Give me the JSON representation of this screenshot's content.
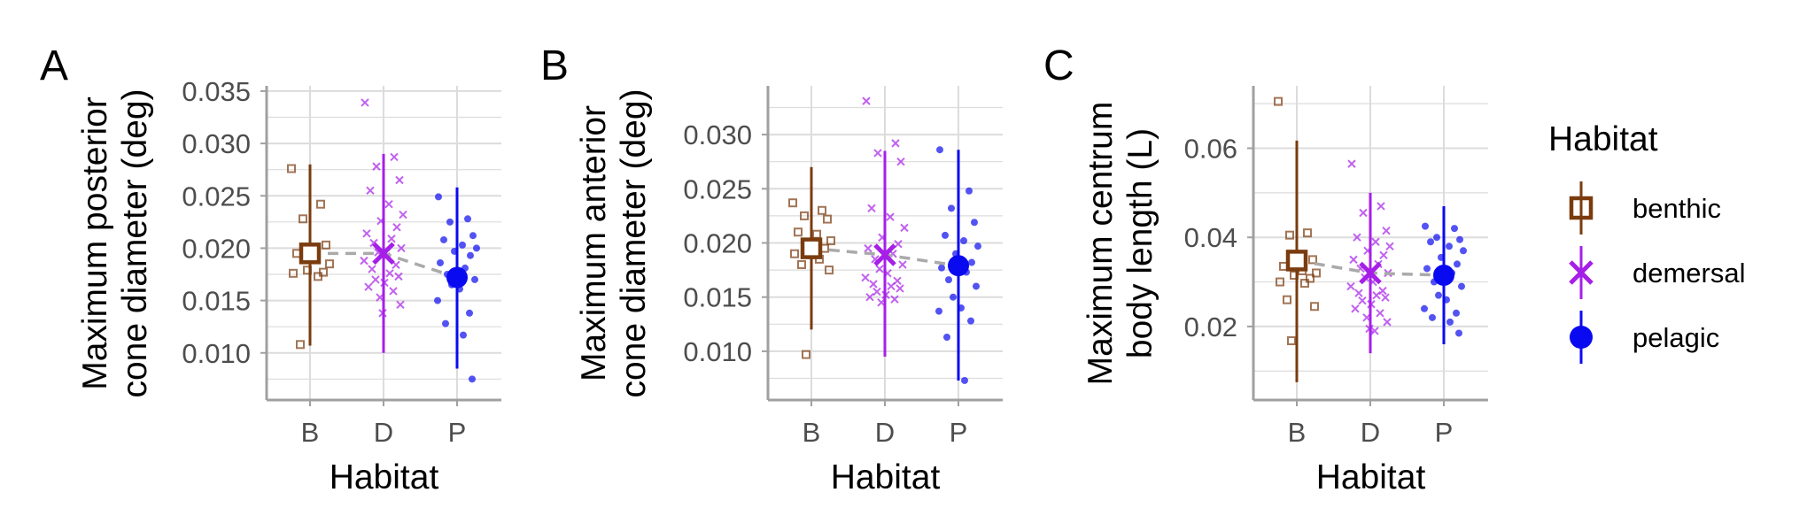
{
  "chart_data": [
    {
      "type": "scatter",
      "panel_label": "A",
      "xlabel": "Habitat",
      "ylabel_lines": [
        "Maximum posterior",
        "cone diameter (deg)"
      ],
      "categories": [
        "B",
        "D",
        "P"
      ],
      "ylim": [
        0.0055,
        0.0355
      ],
      "yticks": [
        0.01,
        0.015,
        0.02,
        0.025,
        0.03,
        0.035
      ],
      "ytick_labels": [
        "0.010",
        "0.015",
        "0.020",
        "0.025",
        "0.030",
        "0.035"
      ],
      "grid": true,
      "trend_line": "dashed gray connecting group means",
      "groups": [
        {
          "habitat": "benthic",
          "mean": 0.0195,
          "lower": 0.0107,
          "upper": 0.028,
          "points": [
            0.0276,
            0.0242,
            0.0228,
            0.0203,
            0.0195,
            0.019,
            0.0185,
            0.0179,
            0.0177,
            0.0176,
            0.0173,
            0.0108
          ]
        },
        {
          "habitat": "demersal",
          "mean": 0.0195,
          "lower": 0.01,
          "upper": 0.029,
          "points": [
            0.0339,
            0.0287,
            0.0278,
            0.0265,
            0.0255,
            0.0242,
            0.0232,
            0.0226,
            0.022,
            0.0214,
            0.0209,
            0.0205,
            0.02,
            0.0196,
            0.0192,
            0.0188,
            0.0184,
            0.018,
            0.0176,
            0.0173,
            0.017,
            0.0167,
            0.0163,
            0.0159,
            0.0153,
            0.0146,
            0.0138
          ]
        },
        {
          "habitat": "pelagic",
          "mean": 0.0172,
          "lower": 0.0085,
          "upper": 0.0258,
          "points": [
            0.0249,
            0.0228,
            0.0225,
            0.0212,
            0.0208,
            0.0203,
            0.02,
            0.0197,
            0.0193,
            0.0186,
            0.0181,
            0.0175,
            0.017,
            0.0165,
            0.0161,
            0.015,
            0.0138,
            0.0128,
            0.0117,
            0.0075
          ]
        }
      ]
    },
    {
      "type": "scatter",
      "panel_label": "B",
      "xlabel": "Habitat",
      "ylabel_lines": [
        "Maximum anterior",
        "cone diameter (deg)"
      ],
      "categories": [
        "B",
        "D",
        "P"
      ],
      "ylim": [
        0.0055,
        0.0345
      ],
      "yticks": [
        0.01,
        0.015,
        0.02,
        0.025,
        0.03
      ],
      "ytick_labels": [
        "0.010",
        "0.015",
        "0.020",
        "0.025",
        "0.030"
      ],
      "grid": true,
      "trend_line": "dashed gray connecting group means",
      "groups": [
        {
          "habitat": "benthic",
          "mean": 0.0195,
          "lower": 0.012,
          "upper": 0.027,
          "points": [
            0.0237,
            0.023,
            0.0225,
            0.0222,
            0.021,
            0.0208,
            0.0202,
            0.02,
            0.0195,
            0.019,
            0.0185,
            0.018,
            0.0175,
            0.0097
          ]
        },
        {
          "habitat": "demersal",
          "mean": 0.0189,
          "lower": 0.0095,
          "upper": 0.0285,
          "points": [
            0.0331,
            0.0292,
            0.0283,
            0.0275,
            0.0232,
            0.0224,
            0.0214,
            0.0205,
            0.0199,
            0.0195,
            0.019,
            0.0185,
            0.018,
            0.0176,
            0.0172,
            0.0168,
            0.0165,
            0.0162,
            0.016,
            0.0158,
            0.0155,
            0.0152,
            0.015,
            0.0148,
            0.0145
          ]
        },
        {
          "habitat": "pelagic",
          "mean": 0.0179,
          "lower": 0.0073,
          "upper": 0.0286,
          "points": [
            0.0286,
            0.0248,
            0.0232,
            0.0219,
            0.0207,
            0.0202,
            0.0197,
            0.019,
            0.0182,
            0.0177,
            0.0173,
            0.0166,
            0.016,
            0.015,
            0.014,
            0.0137,
            0.0128,
            0.0113,
            0.0073
          ]
        }
      ]
    },
    {
      "type": "scatter",
      "panel_label": "C",
      "xlabel": "Habitat",
      "ylabel_lines": [
        "Maximum centrum",
        "body length (L)"
      ],
      "categories": [
        "B",
        "D",
        "P"
      ],
      "ylim": [
        0.0035,
        0.074
      ],
      "yticks": [
        0.02,
        0.04,
        0.06
      ],
      "ytick_labels": [
        "0.02",
        "0.04",
        "0.06"
      ],
      "grid": true,
      "trend_line": "dashed gray connecting group means",
      "groups": [
        {
          "habitat": "benthic",
          "mean": 0.0348,
          "lower": 0.0075,
          "upper": 0.0617,
          "points": [
            0.0705,
            0.041,
            0.0405,
            0.035,
            0.0335,
            0.0325,
            0.032,
            0.0315,
            0.0308,
            0.03,
            0.0297,
            0.026,
            0.0245,
            0.0168
          ]
        },
        {
          "habitat": "demersal",
          "mean": 0.032,
          "lower": 0.014,
          "upper": 0.05,
          "points": [
            0.0565,
            0.047,
            0.0455,
            0.0415,
            0.04,
            0.039,
            0.038,
            0.037,
            0.036,
            0.035,
            0.034,
            0.033,
            0.032,
            0.031,
            0.03,
            0.029,
            0.028,
            0.0275,
            0.027,
            0.0265,
            0.0258,
            0.025,
            0.024,
            0.023,
            0.022,
            0.021,
            0.0195,
            0.019
          ]
        },
        {
          "habitat": "pelagic",
          "mean": 0.0315,
          "lower": 0.016,
          "upper": 0.047,
          "points": [
            0.0425,
            0.042,
            0.04,
            0.0395,
            0.039,
            0.038,
            0.037,
            0.0355,
            0.034,
            0.033,
            0.032,
            0.03,
            0.029,
            0.027,
            0.026,
            0.024,
            0.023,
            0.022,
            0.021,
            0.0185
          ]
        }
      ]
    }
  ],
  "legend": {
    "title": "Habitat",
    "items": [
      {
        "label": "benthic",
        "shape": "square",
        "color": "#7A3B0E"
      },
      {
        "label": "demersal",
        "shape": "x",
        "color": "#A61FE8"
      },
      {
        "label": "pelagic",
        "shape": "circle",
        "color": "#0A0AF0"
      }
    ]
  },
  "colors": {
    "benthic": "#7A3B0E",
    "demersal": "#A61FE8",
    "pelagic": "#0A0AF0",
    "trend": "#AAAAAA",
    "grid": "#DCDCDC",
    "axis": "#A0A0A0"
  }
}
